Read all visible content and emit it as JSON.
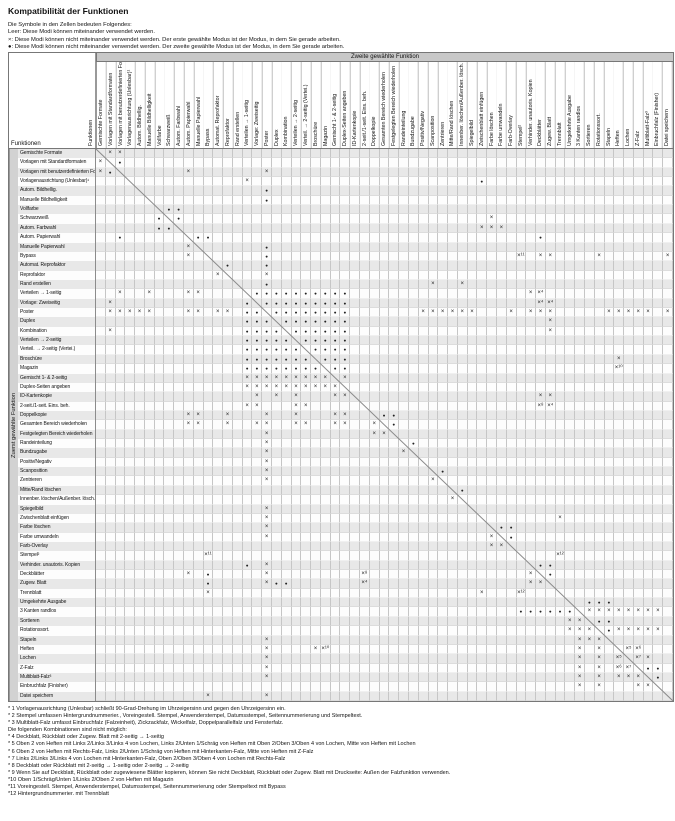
{
  "page": {
    "title": "Kompatibilität der Funktionen",
    "legend": [
      "Die Symbole in den Zellen bedeuten Folgendes:",
      "Leer: Diese Modi können miteinander verwendet werden.",
      "×: Diese Modi können nicht miteinander verwendet werden. Der erste gewählte Modus ist der Modus, in dem Sie gerade arbeiten.",
      "●: Diese Modi können nicht miteinander verwendet werden.  Der zweite gewählte Modus ist der Modus, in dem Sie gerade arbeiten."
    ]
  },
  "table": {
    "second_function_label": "Zweite gewählte Funktion",
    "first_function_label": "Zuerst gewählte Funktion",
    "corner_label": "Funktionen",
    "corner_label_rotated": "Funktionen",
    "symbols": {
      "incompatible_keep_first": "×",
      "incompatible_keep_second": "●",
      "compatible": ""
    },
    "functions": [
      "Gemischte Formate",
      "Vorlagen mit Standardformaten",
      "Vorlagen mit benutzerdefinierten Format",
      "Vorlagenausrichtung (Unlesbar)¹",
      "Autom. Bildhellig.",
      "Manuelle Bildhelligkeit",
      "Vollfarbe",
      "Schwarzweiß",
      "Autom. Farbwahl",
      "Autom. Papierwahl",
      "Manuelle Papierwahl",
      "Bypass",
      "Automat. Reprofaktor",
      "Reprofaktor",
      "Rand erstellen",
      "Verteilen → 1-seitig",
      "Vorlage: Zweiseitig",
      "Poster",
      "Duplex",
      "Kombination",
      "Verteilen → 2-seitig",
      "Verteil. → 2-seitig (Vertei.)",
      "Broschüre",
      "Magazin",
      "Gemischt 1- & 2-seitig",
      "Duplex-Seiten angeben",
      "ID-Kartenkopie",
      "2-seit./1-seit. Eins. beh.",
      "Doppelkopie",
      "Gesamten Bereich wiederholen",
      "Festgelegten Bereich wiederholen",
      "Randeinteilung",
      "Bundzugabe",
      "Positiv/Negativ",
      "Scanposition",
      "Zentrieren",
      "Mitte/Rand löschen",
      "Innenber. löschen/Außenber. lösch.",
      "Spiegelbild",
      "Zwischenblatt einfügen",
      "Farbe löschen",
      "Farbe umwandeln",
      "Farb-Overlay",
      "Stempel²",
      "Verhinder. unautoris. Kopien",
      "Deckblätter",
      "Zugew. Blatt",
      "Trennblatt",
      "Umgekehrte Ausgabe",
      "3 Kanten randlos",
      "Sortieren",
      "Rotationssort.",
      "Stapeln",
      "Heften",
      "Lochen",
      "Z-Falz",
      "Multiblatt-Falz³",
      "Einbruchfalz (Finisher)",
      "Datei speichern"
    ],
    "mark_blocks": [
      {
        "rows": [
          16,
          24
        ],
        "cols": [
          16,
          26
        ],
        "glyph": "●"
      },
      {
        "rows": [
          25,
          26
        ],
        "cols": [
          16,
          26
        ],
        "glyph": "×"
      }
    ],
    "marks": [
      [
        1,
        2,
        "×"
      ],
      [
        1,
        3,
        "×"
      ],
      [
        2,
        1,
        "×"
      ],
      [
        2,
        3,
        "●"
      ],
      [
        3,
        1,
        "×"
      ],
      [
        3,
        2,
        "●"
      ],
      [
        3,
        10,
        "×"
      ],
      [
        3,
        18,
        "×"
      ],
      [
        4,
        16,
        "×"
      ],
      [
        4,
        40,
        "●"
      ],
      [
        5,
        18,
        "●"
      ],
      [
        6,
        18,
        "●"
      ],
      [
        7,
        8,
        "●"
      ],
      [
        7,
        9,
        "●"
      ],
      [
        8,
        7,
        "●"
      ],
      [
        8,
        9,
        "●"
      ],
      [
        8,
        41,
        "×"
      ],
      [
        9,
        7,
        "●"
      ],
      [
        9,
        8,
        "●"
      ],
      [
        9,
        40,
        "×"
      ],
      [
        9,
        41,
        "×"
      ],
      [
        9,
        42,
        "×"
      ],
      [
        10,
        3,
        "●"
      ],
      [
        10,
        11,
        "●"
      ],
      [
        10,
        12,
        "●"
      ],
      [
        10,
        46,
        "●"
      ],
      [
        11,
        10,
        "×"
      ],
      [
        11,
        18,
        "●"
      ],
      [
        12,
        10,
        "×"
      ],
      [
        12,
        18,
        "●"
      ],
      [
        12,
        44,
        "×¹¹"
      ],
      [
        12,
        46,
        "×"
      ],
      [
        12,
        47,
        "×"
      ],
      [
        12,
        52,
        "×"
      ],
      [
        12,
        59,
        "×"
      ],
      [
        13,
        14,
        "●"
      ],
      [
        13,
        18,
        "●"
      ],
      [
        14,
        13,
        "×"
      ],
      [
        14,
        18,
        "×"
      ],
      [
        15,
        18,
        "●"
      ],
      [
        15,
        35,
        "×"
      ],
      [
        15,
        38,
        "×"
      ],
      [
        16,
        3,
        "×"
      ],
      [
        16,
        6,
        "×"
      ],
      [
        16,
        10,
        "×"
      ],
      [
        16,
        11,
        "×"
      ],
      [
        16,
        45,
        "×"
      ],
      [
        16,
        46,
        "×⁴"
      ],
      [
        17,
        2,
        "×"
      ],
      [
        17,
        46,
        "×⁴"
      ],
      [
        17,
        47,
        "×⁴"
      ],
      [
        18,
        2,
        "×"
      ],
      [
        18,
        3,
        "×"
      ],
      [
        18,
        4,
        "×"
      ],
      [
        18,
        5,
        "×"
      ],
      [
        18,
        6,
        "×"
      ],
      [
        18,
        10,
        "×"
      ],
      [
        18,
        11,
        "×"
      ],
      [
        18,
        13,
        "×"
      ],
      [
        18,
        14,
        "×"
      ],
      [
        18,
        34,
        "×"
      ],
      [
        18,
        35,
        "×"
      ],
      [
        18,
        36,
        "×"
      ],
      [
        18,
        37,
        "×"
      ],
      [
        18,
        38,
        "×"
      ],
      [
        18,
        39,
        "×"
      ],
      [
        18,
        43,
        "×"
      ],
      [
        18,
        45,
        "×"
      ],
      [
        18,
        46,
        "×"
      ],
      [
        18,
        47,
        "×"
      ],
      [
        18,
        53,
        "×"
      ],
      [
        18,
        54,
        "×"
      ],
      [
        18,
        55,
        "×"
      ],
      [
        18,
        56,
        "×"
      ],
      [
        18,
        57,
        "×"
      ],
      [
        18,
        59,
        "×"
      ],
      [
        19,
        47,
        "×"
      ],
      [
        20,
        2,
        "×"
      ],
      [
        20,
        47,
        "×"
      ],
      [
        23,
        54,
        "×"
      ],
      [
        24,
        54,
        "×¹⁰"
      ],
      [
        27,
        17,
        "×"
      ],
      [
        27,
        19,
        "×"
      ],
      [
        27,
        21,
        "×"
      ],
      [
        27,
        25,
        "×"
      ],
      [
        27,
        26,
        "×"
      ],
      [
        27,
        46,
        "×"
      ],
      [
        27,
        47,
        "×"
      ],
      [
        28,
        16,
        "×"
      ],
      [
        28,
        17,
        "×"
      ],
      [
        28,
        21,
        "×"
      ],
      [
        28,
        22,
        "×"
      ],
      [
        28,
        46,
        "×⁸"
      ],
      [
        28,
        47,
        "×⁴"
      ],
      [
        29,
        10,
        "×"
      ],
      [
        29,
        11,
        "×"
      ],
      [
        29,
        14,
        "×"
      ],
      [
        29,
        18,
        "×"
      ],
      [
        29,
        21,
        "×"
      ],
      [
        29,
        25,
        "×"
      ],
      [
        29,
        26,
        "×"
      ],
      [
        29,
        30,
        "●"
      ],
      [
        29,
        31,
        "●"
      ],
      [
        30,
        10,
        "×"
      ],
      [
        30,
        11,
        "×"
      ],
      [
        30,
        14,
        "×"
      ],
      [
        30,
        17,
        "×"
      ],
      [
        30,
        18,
        "×"
      ],
      [
        30,
        21,
        "×"
      ],
      [
        30,
        22,
        "×"
      ],
      [
        30,
        25,
        "×"
      ],
      [
        30,
        26,
        "×"
      ],
      [
        30,
        29,
        "×"
      ],
      [
        30,
        31,
        "●"
      ],
      [
        31,
        18,
        "×"
      ],
      [
        31,
        29,
        "×"
      ],
      [
        31,
        30,
        "×"
      ],
      [
        32,
        18,
        "×"
      ],
      [
        32,
        33,
        "●"
      ],
      [
        33,
        18,
        "×"
      ],
      [
        33,
        32,
        "×"
      ],
      [
        34,
        18,
        "×"
      ],
      [
        35,
        18,
        "×"
      ],
      [
        35,
        36,
        "●"
      ],
      [
        36,
        18,
        "×"
      ],
      [
        36,
        35,
        "×"
      ],
      [
        37,
        38,
        "●"
      ],
      [
        38,
        37,
        "×"
      ],
      [
        39,
        18,
        "×"
      ],
      [
        40,
        18,
        "×"
      ],
      [
        40,
        48,
        "×"
      ],
      [
        41,
        18,
        "×"
      ],
      [
        41,
        42,
        "●"
      ],
      [
        41,
        43,
        "●"
      ],
      [
        42,
        18,
        "×"
      ],
      [
        42,
        41,
        "×"
      ],
      [
        42,
        43,
        "●"
      ],
      [
        43,
        41,
        "×"
      ],
      [
        43,
        42,
        "×"
      ],
      [
        44,
        12,
        "×¹¹"
      ],
      [
        44,
        48,
        "×¹²"
      ],
      [
        45,
        16,
        "●"
      ],
      [
        45,
        18,
        "×"
      ],
      [
        45,
        46,
        "●"
      ],
      [
        45,
        47,
        "●"
      ],
      [
        46,
        10,
        "×"
      ],
      [
        46,
        12,
        "●"
      ],
      [
        46,
        18,
        "×"
      ],
      [
        46,
        28,
        "×⁸"
      ],
      [
        46,
        45,
        "×"
      ],
      [
        46,
        47,
        "●"
      ],
      [
        47,
        12,
        "●"
      ],
      [
        47,
        18,
        "×"
      ],
      [
        47,
        19,
        "●"
      ],
      [
        47,
        20,
        "●"
      ],
      [
        47,
        28,
        "×⁴"
      ],
      [
        47,
        45,
        "×"
      ],
      [
        47,
        46,
        "×"
      ],
      [
        48,
        12,
        "×"
      ],
      [
        48,
        40,
        "×"
      ],
      [
        48,
        44,
        "×¹²"
      ],
      [
        49,
        51,
        "●"
      ],
      [
        49,
        52,
        "●"
      ],
      [
        49,
        53,
        "●"
      ],
      [
        50,
        44,
        "●"
      ],
      [
        50,
        45,
        "●"
      ],
      [
        50,
        46,
        "●"
      ],
      [
        50,
        47,
        "●"
      ],
      [
        50,
        48,
        "●"
      ],
      [
        50,
        49,
        "●"
      ],
      [
        50,
        51,
        "×"
      ],
      [
        50,
        52,
        "×"
      ],
      [
        50,
        53,
        "×"
      ],
      [
        50,
        54,
        "×"
      ],
      [
        50,
        55,
        "×"
      ],
      [
        50,
        56,
        "×"
      ],
      [
        50,
        57,
        "×"
      ],
      [
        50,
        58,
        "×"
      ],
      [
        51,
        49,
        "×"
      ],
      [
        51,
        50,
        "×"
      ],
      [
        51,
        52,
        "●"
      ],
      [
        51,
        53,
        "●"
      ],
      [
        52,
        49,
        "×"
      ],
      [
        52,
        50,
        "×"
      ],
      [
        52,
        51,
        "×"
      ],
      [
        52,
        53,
        "●"
      ],
      [
        52,
        54,
        "×"
      ],
      [
        52,
        55,
        "×"
      ],
      [
        52,
        56,
        "×"
      ],
      [
        52,
        57,
        "×"
      ],
      [
        52,
        58,
        "×"
      ],
      [
        53,
        18,
        "×"
      ],
      [
        53,
        50,
        "×"
      ],
      [
        53,
        51,
        "×"
      ],
      [
        53,
        52,
        "×"
      ],
      [
        54,
        18,
        "×"
      ],
      [
        54,
        23,
        "×"
      ],
      [
        54,
        24,
        "×¹⁰"
      ],
      [
        54,
        50,
        "×"
      ],
      [
        54,
        52,
        "×"
      ],
      [
        54,
        55,
        "×⁵"
      ],
      [
        54,
        56,
        "×⁶"
      ],
      [
        55,
        18,
        "×"
      ],
      [
        55,
        50,
        "×"
      ],
      [
        55,
        52,
        "×"
      ],
      [
        55,
        54,
        "×⁵"
      ],
      [
        55,
        56,
        "×⁷"
      ],
      [
        55,
        57,
        "×"
      ],
      [
        56,
        18,
        "×"
      ],
      [
        56,
        50,
        "×"
      ],
      [
        56,
        52,
        "×"
      ],
      [
        56,
        54,
        "×⁶"
      ],
      [
        56,
        55,
        "×⁷"
      ],
      [
        56,
        57,
        "●"
      ],
      [
        56,
        58,
        "●"
      ],
      [
        57,
        18,
        "×"
      ],
      [
        57,
        50,
        "×"
      ],
      [
        57,
        52,
        "×"
      ],
      [
        57,
        54,
        "×"
      ],
      [
        57,
        55,
        "×"
      ],
      [
        57,
        56,
        "×"
      ],
      [
        57,
        58,
        "●"
      ],
      [
        58,
        50,
        "×"
      ],
      [
        58,
        52,
        "×"
      ],
      [
        58,
        56,
        "×"
      ],
      [
        58,
        57,
        "×"
      ],
      [
        59,
        12,
        "×"
      ],
      [
        59,
        18,
        "×"
      ]
    ]
  },
  "footnotes": [
    "* 1 Vorlagenausrichtung (Unlesbar) schließt 90-Grad-Drehung im Uhrzeigersinn und gegen den Uhrzeigersinn ein.",
    "* 2 Stempel umfassen Hintergrundnummerier., Voreingestell. Stempel, Anwenderstempel, Datumsstempel, Seitennummerierung und Stempeltext.",
    "* 3 Multiblatt-Falz umfasst Einbruchfalz (Falzeinheit), Zickzackfalz, Wickelfalz, Doppelparallelfalz und Fensterfalz.",
    "Die folgenden Kombinationen sind nicht möglich:",
    "* 4 Deckblatt, Rückblatt oder Zugew. Blatt mit 2-seitig → 1-seitig",
    "* 5 Oben 2 von Heften mit Links 2/Links 3/Links 4 von Lochen, Links 2/Unten 1/Schräg von Heften mit Oben 2/Oben 3/Oben 4 von Lochen, Mitte von Heften mit Lochen",
    "* 6 Oben 2 von Heften mit Rechts-Falz, Links 2/Unten 1/Schräg von Heften mit Hinterkanten-Falz, Mitte von Heften mit Z-Falz",
    "* 7 Links 2/Links 3/Links 4 von Lochen mit Hinterkanten-Falz, Oben 2/Oben 3/Oben 4 von Lochen mit Rechts-Falz",
    "* 8 Deckblatt oder Rückblatt mit 2-seitig → 1-seitig oder 2-seitig → 2-seitig",
    "* 9 Wenn Sie auf Deckblatt, Rückblatt oder zugewiesene Blätter kopieren, können Sie nicht Deckblatt, Rückblatt oder Zugew. Blatt mit Druckseite: Außen der Falzfunktion verwenden.",
    "*10 Oben 1/Schräg/Unten 1/Links 2/Oben 2 von Heften mit Magazin",
    "*11 Voreingestell. Stempel, Anwenderstempel, Datumsstempel, Seitennummerierung oder Stempeltext mit Bypass",
    "*12 Hintergrundnummerier. mit Trennblatt"
  ]
}
